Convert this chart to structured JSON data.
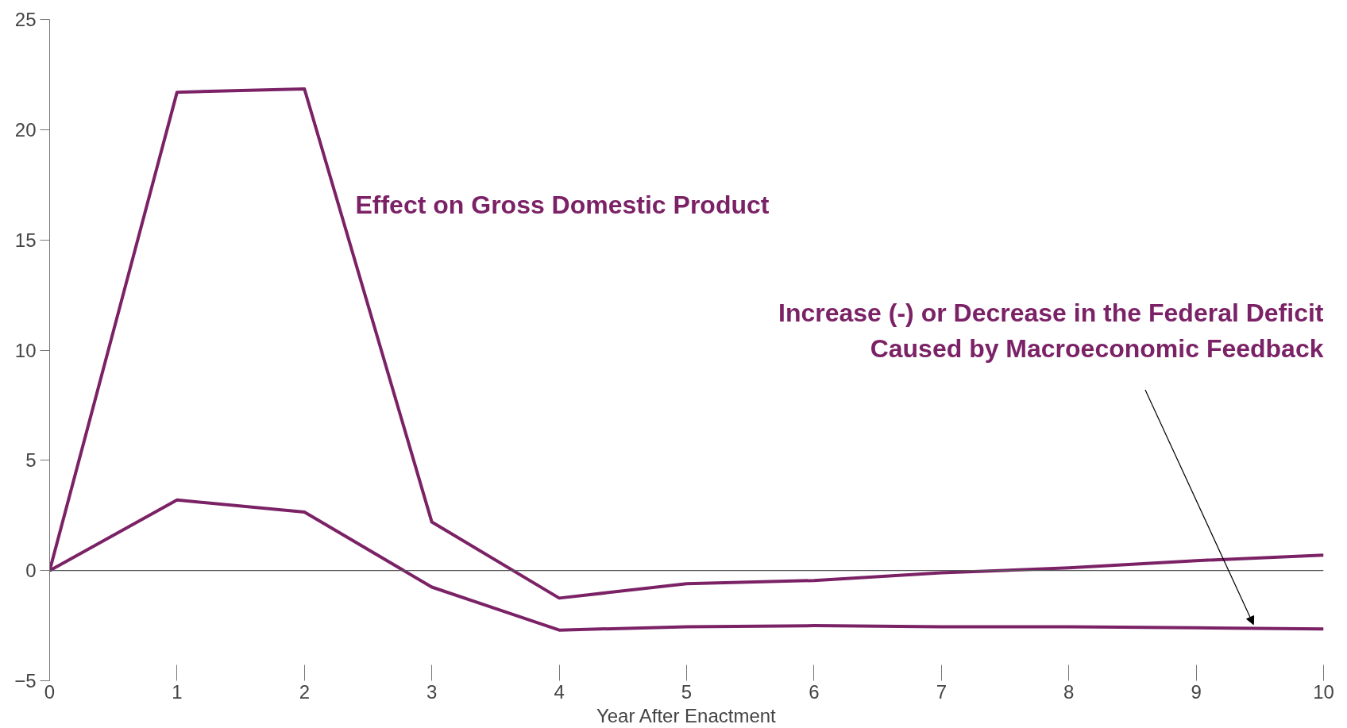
{
  "chart_data": {
    "type": "line",
    "xlabel": "Year After Enactment",
    "x": [
      0,
      1,
      2,
      3,
      4,
      5,
      6,
      7,
      8,
      9,
      10
    ],
    "series": [
      {
        "name": "Effect on Gross Domestic Product",
        "color": "#7b2266",
        "values": [
          0,
          21.7,
          21.85,
          2.2,
          -1.25,
          -0.6,
          -0.45,
          -0.1,
          0.12,
          0.45,
          0.7
        ]
      },
      {
        "name": "Increase (-) or Decrease in the Federal Deficit\nCaused by Macroeconomic Feedback",
        "color": "#7b2266",
        "values": [
          0,
          3.2,
          2.65,
          -0.75,
          -2.7,
          -2.55,
          -2.5,
          -2.55,
          -2.55,
          -2.6,
          -2.65
        ]
      }
    ],
    "xlim": [
      0,
      10
    ],
    "xticks": [
      0,
      1,
      2,
      3,
      4,
      5,
      6,
      7,
      8,
      9,
      10
    ],
    "ylim": [
      -5,
      25
    ],
    "yticks": [
      -5,
      0,
      5,
      10,
      15,
      20,
      25
    ],
    "ref_lines": [
      {
        "axis": "y",
        "value": 0,
        "color": "#555555"
      }
    ],
    "grid": false,
    "line_style": "solid"
  }
}
